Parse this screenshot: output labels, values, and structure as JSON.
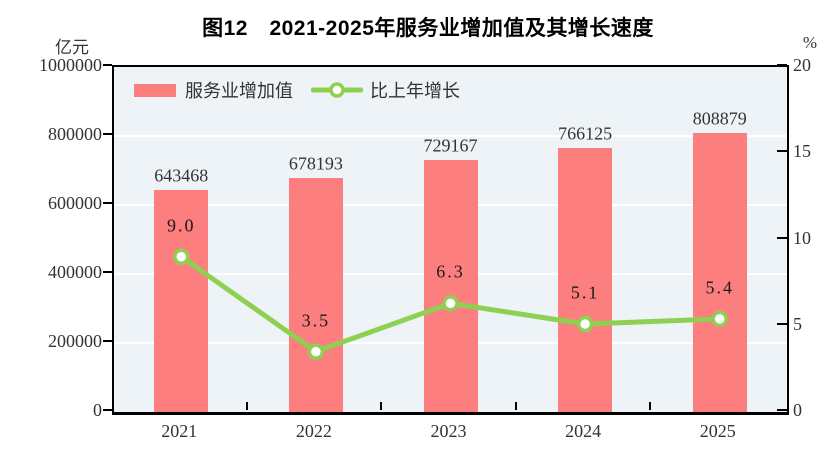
{
  "title": "图12　2021-2025年服务业增加值及其增长速度",
  "left_axis_unit": "亿元",
  "right_axis_unit": "%",
  "legend": {
    "bar_label": "服务业增加值",
    "line_label": "比上年增长"
  },
  "colors": {
    "bar": "#fc7e7e",
    "line": "#8ed051",
    "marker_fill": "#ffffff",
    "plot_background": "#edf3f7",
    "gridline": "#ffffff",
    "border": "#000000"
  },
  "chart_data": {
    "type": "combo",
    "categories": [
      "2021",
      "2022",
      "2023",
      "2024",
      "2025"
    ],
    "series": [
      {
        "name": "服务业增加值",
        "type": "bar",
        "axis": "left",
        "unit": "亿元",
        "values": [
          643468,
          678193,
          729167,
          766125,
          808879
        ],
        "labels": [
          "643468",
          "678193",
          "729167",
          "766125",
          "808879"
        ],
        "color": "#fc7e7e"
      },
      {
        "name": "比上年增长",
        "type": "line",
        "axis": "right",
        "unit": "%",
        "values": [
          9.0,
          3.5,
          6.3,
          5.1,
          5.4
        ],
        "labels": [
          "9.0",
          "3.5",
          "6.3",
          "5.1",
          "5.4"
        ],
        "color": "#8ed051"
      }
    ],
    "left_axis": {
      "label": "亿元",
      "min": 0,
      "max": 1000000,
      "ticks": [
        "1000000",
        "800000",
        "600000",
        "400000",
        "200000",
        "0"
      ]
    },
    "right_axis": {
      "label": "%",
      "min": 0,
      "max": 20,
      "ticks": [
        "20",
        "15",
        "10",
        "5",
        "0"
      ]
    },
    "grid": true,
    "legend_position": "inside-top-left"
  }
}
